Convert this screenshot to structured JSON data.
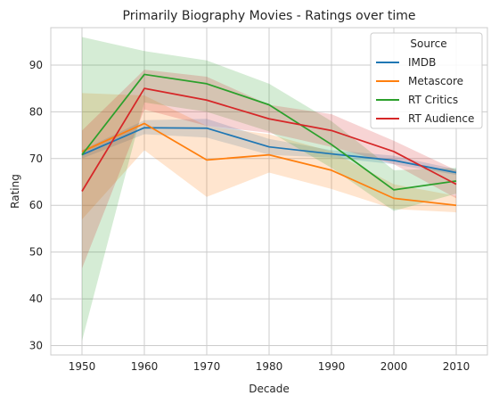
{
  "chart_data": {
    "type": "line",
    "title": "Primarily Biography Movies - Ratings over time",
    "xlabel": "Decade",
    "ylabel": "Rating",
    "x": [
      1950,
      1960,
      1970,
      1980,
      1990,
      2000,
      2010
    ],
    "xlim": [
      1945,
      2015
    ],
    "ylim": [
      28,
      98
    ],
    "yticks": [
      30,
      40,
      50,
      60,
      70,
      80,
      90
    ],
    "grid": true,
    "legend": {
      "title": "Source",
      "placement": "top-right"
    },
    "series": [
      {
        "name": "IMDB",
        "color": "#1f77b4",
        "values": [
          70.8,
          76.6,
          76.5,
          72.5,
          71.0,
          69.6,
          67.0
        ],
        "lower": [
          70.0,
          75.2,
          74.5,
          70.8,
          70.2,
          68.8,
          66.5
        ],
        "upper": [
          71.8,
          78.2,
          78.5,
          74.2,
          71.8,
          70.6,
          67.7
        ]
      },
      {
        "name": "Metascore",
        "color": "#ff7f0e",
        "values": [
          71.5,
          77.5,
          69.7,
          70.8,
          67.5,
          61.5,
          60.0
        ],
        "lower": [
          57.0,
          71.8,
          61.8,
          67.0,
          63.5,
          59.2,
          58.5
        ],
        "upper": [
          84.0,
          83.5,
          77.0,
          75.2,
          71.5,
          64.5,
          62.0
        ]
      },
      {
        "name": "RT Critics",
        "color": "#2ca02c",
        "values": [
          70.8,
          88.0,
          86.0,
          81.5,
          73.0,
          63.3,
          65.2
        ],
        "lower": [
          31.0,
          82.0,
          80.0,
          75.8,
          68.0,
          58.8,
          62.5
        ],
        "upper": [
          96.0,
          93.0,
          91.0,
          86.0,
          78.0,
          67.5,
          68.0
        ]
      },
      {
        "name": "RT Audience",
        "color": "#d62728",
        "values": [
          63.0,
          85.0,
          82.5,
          78.5,
          76.0,
          71.5,
          64.5
        ],
        "lower": [
          46.5,
          80.5,
          77.0,
          75.5,
          72.5,
          68.8,
          61.5
        ],
        "upper": [
          76.0,
          89.0,
          87.5,
          81.5,
          79.5,
          73.8,
          67.5
        ]
      }
    ]
  }
}
